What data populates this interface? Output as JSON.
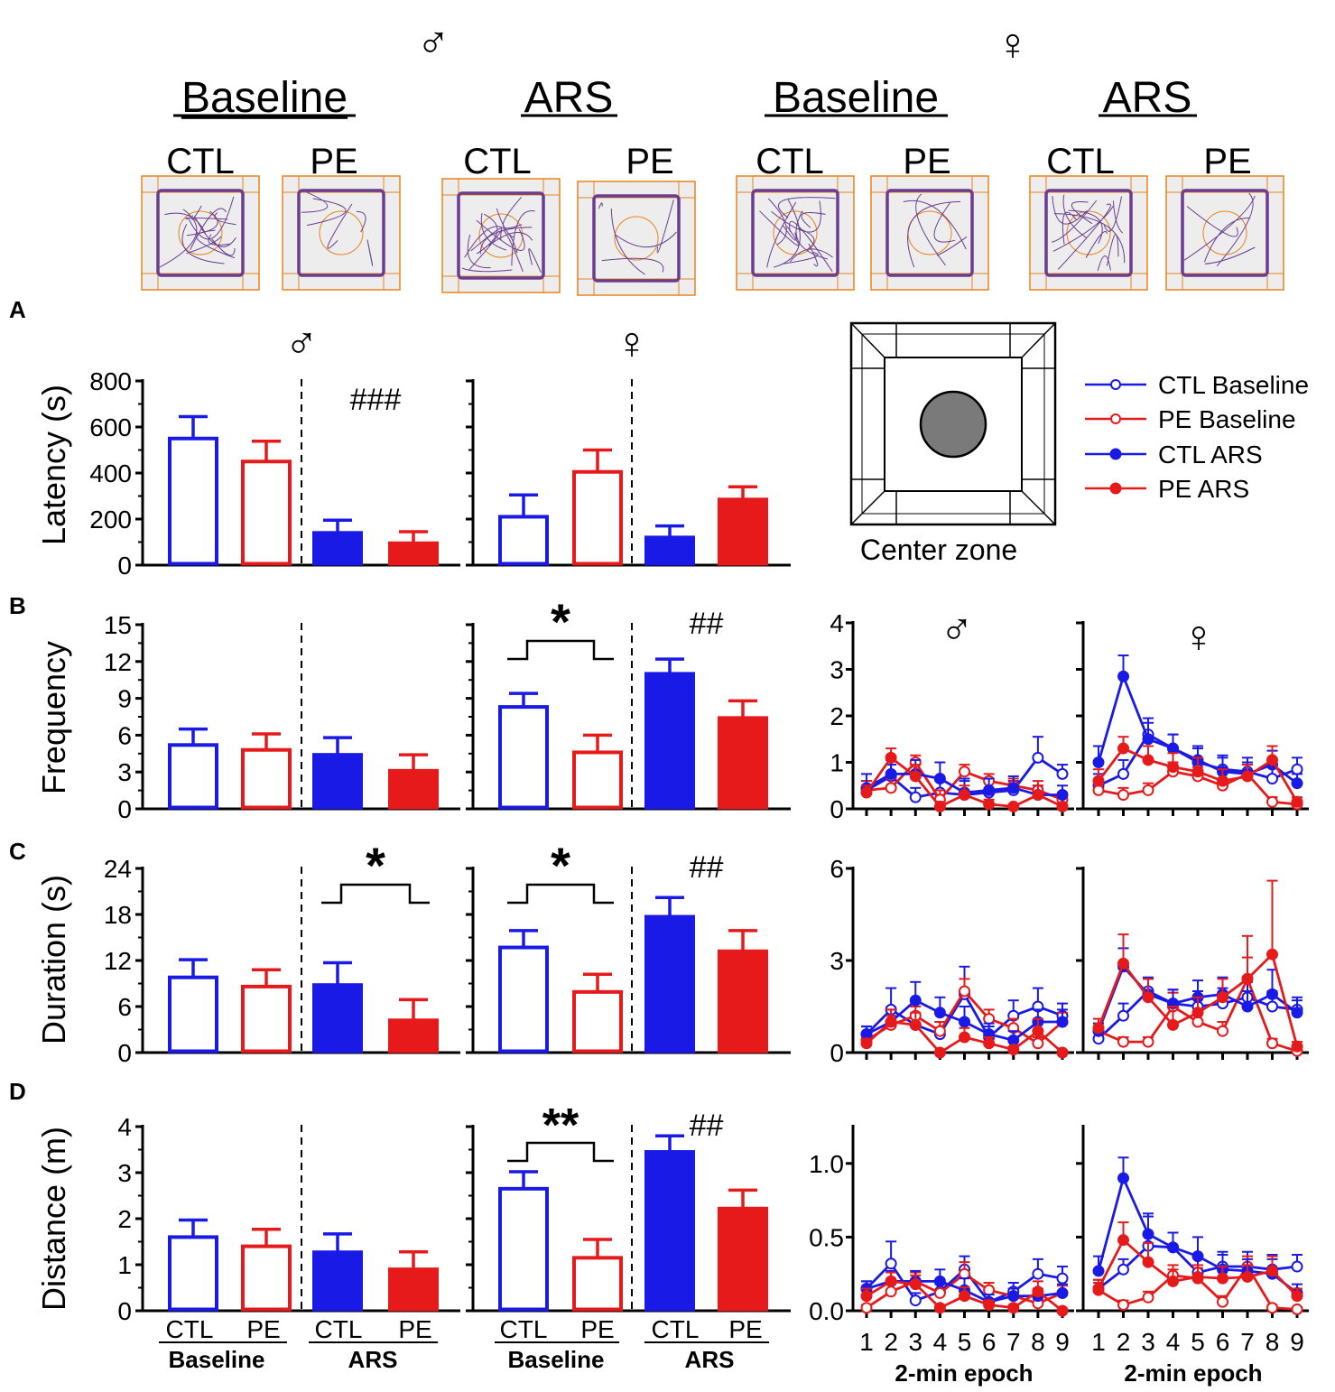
{
  "colors": {
    "ctl": "#1a1ae6",
    "pe": "#e61a1a",
    "orange": "#e8841c",
    "track": "#6a3d8f",
    "arena_bg": "#ededed",
    "zone_fill": "#7a7a7a"
  },
  "symbols": {
    "male": "♂",
    "female": "♀"
  },
  "header": {
    "groups": [
      {
        "sex": "male",
        "title": "Baseline",
        "labels": [
          "CTL",
          "PE"
        ]
      },
      {
        "sex": "male",
        "title": "ARS",
        "labels": [
          "CTL",
          "PE"
        ]
      },
      {
        "sex": "female",
        "title": "Baseline",
        "labels": [
          "CTL",
          "PE"
        ]
      },
      {
        "sex": "female",
        "title": "ARS",
        "labels": [
          "CTL",
          "PE"
        ]
      }
    ]
  },
  "panel_letters": [
    "A",
    "B",
    "C",
    "D"
  ],
  "center_zone_label": "Center zone",
  "legend": [
    {
      "label": "CTL Baseline",
      "color": "ctl",
      "filled": false
    },
    {
      "label": "PE Baseline",
      "color": "pe",
      "filled": false
    },
    {
      "label": "CTL ARS",
      "color": "ctl",
      "filled": true
    },
    {
      "label": "PE ARS",
      "color": "pe",
      "filled": true
    }
  ],
  "bar_groups": {
    "conditions": [
      "Baseline",
      "ARS"
    ],
    "groups": [
      "CTL",
      "PE"
    ]
  },
  "epoch_xlabel": "2-min epoch",
  "chart_data": [
    {
      "type": "bar",
      "metric": "latency",
      "ylabel": "Latency (s)",
      "ylim": [
        0,
        800
      ],
      "yticks": [
        0,
        200,
        400,
        600,
        800
      ],
      "categories": [
        "CTL Baseline",
        "PE Baseline",
        "CTL ARS",
        "PE ARS"
      ],
      "male": {
        "values": [
          550,
          450,
          140,
          95
        ],
        "errors": [
          95,
          88,
          55,
          50
        ],
        "annotations": [
          {
            "text": "###",
            "over": "ARS"
          }
        ]
      },
      "female": {
        "values": [
          210,
          405,
          120,
          285
        ],
        "errors": [
          95,
          95,
          50,
          55
        ],
        "annotations": []
      }
    },
    {
      "type": "bar",
      "metric": "frequency",
      "ylabel": "Frequency",
      "ylim": [
        0,
        15
      ],
      "yticks": [
        0,
        3,
        6,
        9,
        12,
        15
      ],
      "categories": [
        "CTL Baseline",
        "PE Baseline",
        "CTL ARS",
        "PE ARS"
      ],
      "male": {
        "values": [
          5.2,
          4.8,
          4.4,
          3.1
        ],
        "errors": [
          1.3,
          1.3,
          1.4,
          1.3
        ],
        "annotations": []
      },
      "female": {
        "values": [
          8.3,
          4.6,
          11.0,
          7.4
        ],
        "errors": [
          1.1,
          1.4,
          1.2,
          1.4
        ],
        "annotations": [
          {
            "text": "*",
            "over": "Baseline"
          },
          {
            "text": "##",
            "over": "ARS"
          }
        ]
      }
    },
    {
      "type": "bar",
      "metric": "duration",
      "ylabel": "Duration (s)",
      "ylim": [
        0,
        24
      ],
      "yticks": [
        0,
        6,
        12,
        18,
        24
      ],
      "categories": [
        "CTL Baseline",
        "PE Baseline",
        "CTL ARS",
        "PE ARS"
      ],
      "male": {
        "values": [
          9.8,
          8.6,
          8.8,
          4.2
        ],
        "errors": [
          2.3,
          2.2,
          2.9,
          2.7
        ],
        "annotations": [
          {
            "text": "*",
            "over": "ARS"
          }
        ]
      },
      "female": {
        "values": [
          13.7,
          7.9,
          17.7,
          13.2
        ],
        "errors": [
          2.2,
          2.3,
          2.5,
          2.7
        ],
        "annotations": [
          {
            "text": "*",
            "over": "Baseline"
          },
          {
            "text": "##",
            "over": "ARS"
          }
        ]
      }
    },
    {
      "type": "bar",
      "metric": "distance",
      "ylabel": "Distance (m)",
      "ylim": [
        0,
        4
      ],
      "yticks": [
        0,
        1,
        2,
        3,
        4
      ],
      "categories": [
        "CTL Baseline",
        "PE Baseline",
        "CTL ARS",
        "PE ARS"
      ],
      "male": {
        "values": [
          1.6,
          1.4,
          1.27,
          0.9
        ],
        "errors": [
          0.37,
          0.37,
          0.4,
          0.38
        ],
        "annotations": []
      },
      "female": {
        "values": [
          2.65,
          1.15,
          3.45,
          2.22
        ],
        "errors": [
          0.37,
          0.4,
          0.35,
          0.4
        ],
        "annotations": [
          {
            "text": "**",
            "over": "Baseline"
          },
          {
            "text": "##",
            "over": "ARS"
          }
        ]
      }
    },
    {
      "type": "line",
      "metric": "frequency",
      "ylim": [
        0,
        4
      ],
      "yticks": [
        0,
        1,
        2,
        3,
        4
      ],
      "x": [
        1,
        2,
        3,
        4,
        5,
        6,
        7,
        8,
        9
      ],
      "male": {
        "series": [
          {
            "name": "CTL Baseline",
            "values": [
              0.4,
              0.7,
              0.25,
              0.35,
              0.3,
              0.35,
              0.4,
              1.1,
              0.75
            ],
            "errors": [
              0.2,
              0.25,
              0.2,
              0.25,
              0.3,
              0.25,
              0.2,
              0.45,
              0.2
            ]
          },
          {
            "name": "PE Baseline",
            "values": [
              0.4,
              0.45,
              1.0,
              0.2,
              0.8,
              0.6,
              0.5,
              0.4,
              0.2
            ],
            "errors": [
              0.2,
              0.2,
              0.15,
              0.2,
              0.15,
              0.15,
              0.15,
              0.2,
              0.15
            ]
          },
          {
            "name": "CTL ARS",
            "values": [
              0.45,
              0.75,
              0.75,
              0.65,
              0.35,
              0.4,
              0.45,
              0.3,
              0.3
            ],
            "errors": [
              0.3,
              0.3,
              0.3,
              0.35,
              0.3,
              0.25,
              0.25,
              0.2,
              0.2
            ]
          },
          {
            "name": "PE ARS",
            "values": [
              0.35,
              1.1,
              0.7,
              0.05,
              0.3,
              0.1,
              0.05,
              0.3,
              0.05
            ],
            "errors": [
              0.15,
              0.2,
              0.25,
              0.1,
              0.2,
              0.1,
              0.05,
              0.2,
              0.05
            ]
          }
        ]
      },
      "female": {
        "series": [
          {
            "name": "CTL Baseline",
            "values": [
              0.5,
              0.75,
              1.6,
              1.3,
              1.0,
              0.85,
              0.8,
              0.65,
              0.85
            ],
            "errors": [
              0.25,
              0.3,
              0.35,
              0.3,
              0.3,
              0.3,
              0.3,
              0.3,
              0.25
            ]
          },
          {
            "name": "PE Baseline",
            "values": [
              0.4,
              0.3,
              0.4,
              0.8,
              0.7,
              0.5,
              0.75,
              0.15,
              0.1
            ],
            "errors": [
              0.15,
              0.15,
              0.15,
              0.2,
              0.2,
              0.15,
              0.2,
              0.1,
              0.05
            ]
          },
          {
            "name": "CTL ARS",
            "values": [
              1.0,
              2.85,
              1.5,
              1.3,
              1.05,
              0.8,
              0.75,
              0.95,
              0.55
            ],
            "errors": [
              0.35,
              0.45,
              0.35,
              0.3,
              0.3,
              0.3,
              0.25,
              0.3,
              0.2
            ]
          },
          {
            "name": "PE ARS",
            "values": [
              0.6,
              1.3,
              1.05,
              0.9,
              0.8,
              0.6,
              0.7,
              1.05,
              0.15
            ],
            "errors": [
              0.25,
              0.25,
              0.3,
              0.3,
              0.3,
              0.25,
              0.25,
              0.3,
              0.1
            ]
          }
        ]
      }
    },
    {
      "type": "line",
      "metric": "duration",
      "ylim": [
        0,
        6
      ],
      "yticks": [
        0,
        3,
        6
      ],
      "x": [
        1,
        2,
        3,
        4,
        5,
        6,
        7,
        8,
        9
      ],
      "male": {
        "series": [
          {
            "name": "CTL Baseline",
            "values": [
              0.6,
              1.4,
              0.9,
              0.6,
              1.9,
              0.5,
              1.2,
              1.5,
              1.2
            ],
            "errors": [
              0.25,
              0.7,
              0.35,
              0.4,
              0.9,
              0.35,
              0.5,
              0.6,
              0.4
            ]
          },
          {
            "name": "PE Baseline",
            "values": [
              0.4,
              0.9,
              1.2,
              0.7,
              2.0,
              1.1,
              0.8,
              0.3,
              1.0
            ],
            "errors": [
              0.2,
              0.3,
              0.3,
              0.3,
              0.4,
              0.3,
              0.3,
              0.2,
              0.3
            ]
          },
          {
            "name": "CTL ARS",
            "values": [
              0.6,
              1.0,
              1.7,
              1.3,
              1.0,
              0.6,
              0.4,
              1.0,
              1.0
            ],
            "errors": [
              0.25,
              0.4,
              0.6,
              0.5,
              0.5,
              0.35,
              0.3,
              0.4,
              0.4
            ]
          },
          {
            "name": "PE ARS",
            "values": [
              0.3,
              1.0,
              0.9,
              0.0,
              0.5,
              0.3,
              0.1,
              0.7,
              0.0
            ],
            "errors": [
              0.15,
              0.4,
              0.4,
              0.05,
              0.3,
              0.2,
              0.1,
              0.4,
              0.05
            ]
          }
        ]
      },
      "female": {
        "series": [
          {
            "name": "CTL Baseline",
            "values": [
              0.45,
              1.2,
              2.0,
              1.6,
              1.5,
              1.6,
              1.8,
              1.5,
              1.4
            ],
            "errors": [
              0.2,
              0.4,
              0.45,
              0.45,
              0.5,
              0.5,
              0.5,
              0.5,
              0.4
            ]
          },
          {
            "name": "PE Baseline",
            "values": [
              0.7,
              0.35,
              0.35,
              1.5,
              1.0,
              0.7,
              2.4,
              0.3,
              0.05
            ],
            "errors": [
              0.25,
              0.15,
              0.15,
              0.45,
              0.35,
              0.3,
              0.7,
              0.15,
              0.05
            ]
          },
          {
            "name": "CTL ARS",
            "values": [
              0.7,
              2.8,
              1.9,
              1.6,
              1.8,
              1.9,
              1.5,
              1.9,
              1.3
            ],
            "errors": [
              0.25,
              0.6,
              0.5,
              0.45,
              0.55,
              0.55,
              0.5,
              0.8,
              0.4
            ]
          },
          {
            "name": "PE ARS",
            "values": [
              0.8,
              2.9,
              1.8,
              0.9,
              1.3,
              1.8,
              2.4,
              3.2,
              0.2
            ],
            "errors": [
              0.3,
              0.95,
              0.6,
              0.6,
              0.5,
              0.6,
              1.4,
              2.4,
              0.15
            ]
          }
        ]
      }
    },
    {
      "type": "line",
      "metric": "distance",
      "ylim": [
        0,
        1.25
      ],
      "yticks": [
        0.0,
        0.5,
        1.0
      ],
      "ytick_labels": [
        "0.0",
        "0.5",
        "1.0"
      ],
      "x": [
        1,
        2,
        3,
        4,
        5,
        6,
        7,
        8,
        9
      ],
      "male": {
        "series": [
          {
            "name": "CTL Baseline",
            "values": [
              0.15,
              0.32,
              0.07,
              0.13,
              0.28,
              0.06,
              0.13,
              0.25,
              0.22
            ],
            "errors": [
              0.05,
              0.15,
              0.05,
              0.07,
              0.09,
              0.05,
              0.06,
              0.1,
              0.08
            ]
          },
          {
            "name": "PE Baseline",
            "values": [
              0.02,
              0.13,
              0.2,
              0.12,
              0.25,
              0.14,
              0.1,
              0.05,
              0.12
            ],
            "errors": [
              0.02,
              0.05,
              0.06,
              0.06,
              0.08,
              0.05,
              0.05,
              0.03,
              0.05
            ]
          },
          {
            "name": "CTL ARS",
            "values": [
              0.15,
              0.2,
              0.2,
              0.2,
              0.14,
              0.06,
              0.1,
              0.1,
              0.12
            ],
            "errors": [
              0.05,
              0.07,
              0.07,
              0.08,
              0.08,
              0.05,
              0.05,
              0.05,
              0.06
            ]
          },
          {
            "name": "PE ARS",
            "values": [
              0.1,
              0.2,
              0.18,
              0.02,
              0.1,
              0.04,
              0.02,
              0.13,
              0.0
            ],
            "errors": [
              0.05,
              0.06,
              0.06,
              0.02,
              0.06,
              0.03,
              0.02,
              0.07,
              0.01
            ]
          }
        ]
      },
      "female": {
        "series": [
          {
            "name": "CTL Baseline",
            "values": [
              0.15,
              0.28,
              0.44,
              0.43,
              0.26,
              0.3,
              0.3,
              0.28,
              0.3
            ],
            "errors": [
              0.06,
              0.07,
              0.22,
              0.1,
              0.1,
              0.1,
              0.1,
              0.1,
              0.08
            ]
          },
          {
            "name": "PE Baseline",
            "values": [
              0.14,
              0.04,
              0.09,
              0.24,
              0.22,
              0.06,
              0.3,
              0.02,
              0.01
            ],
            "errors": [
              0.05,
              0.03,
              0.04,
              0.07,
              0.07,
              0.04,
              0.07,
              0.02,
              0.01
            ]
          },
          {
            "name": "CTL ARS",
            "values": [
              0.27,
              0.9,
              0.52,
              0.43,
              0.37,
              0.28,
              0.27,
              0.25,
              0.12
            ],
            "errors": [
              0.1,
              0.14,
              0.12,
              0.1,
              0.13,
              0.1,
              0.08,
              0.1,
              0.06
            ]
          },
          {
            "name": "PE ARS",
            "values": [
              0.15,
              0.48,
              0.33,
              0.2,
              0.23,
              0.22,
              0.23,
              0.27,
              0.1
            ],
            "errors": [
              0.06,
              0.12,
              0.13,
              0.08,
              0.08,
              0.08,
              0.08,
              0.1,
              0.05
            ]
          }
        ]
      }
    }
  ]
}
